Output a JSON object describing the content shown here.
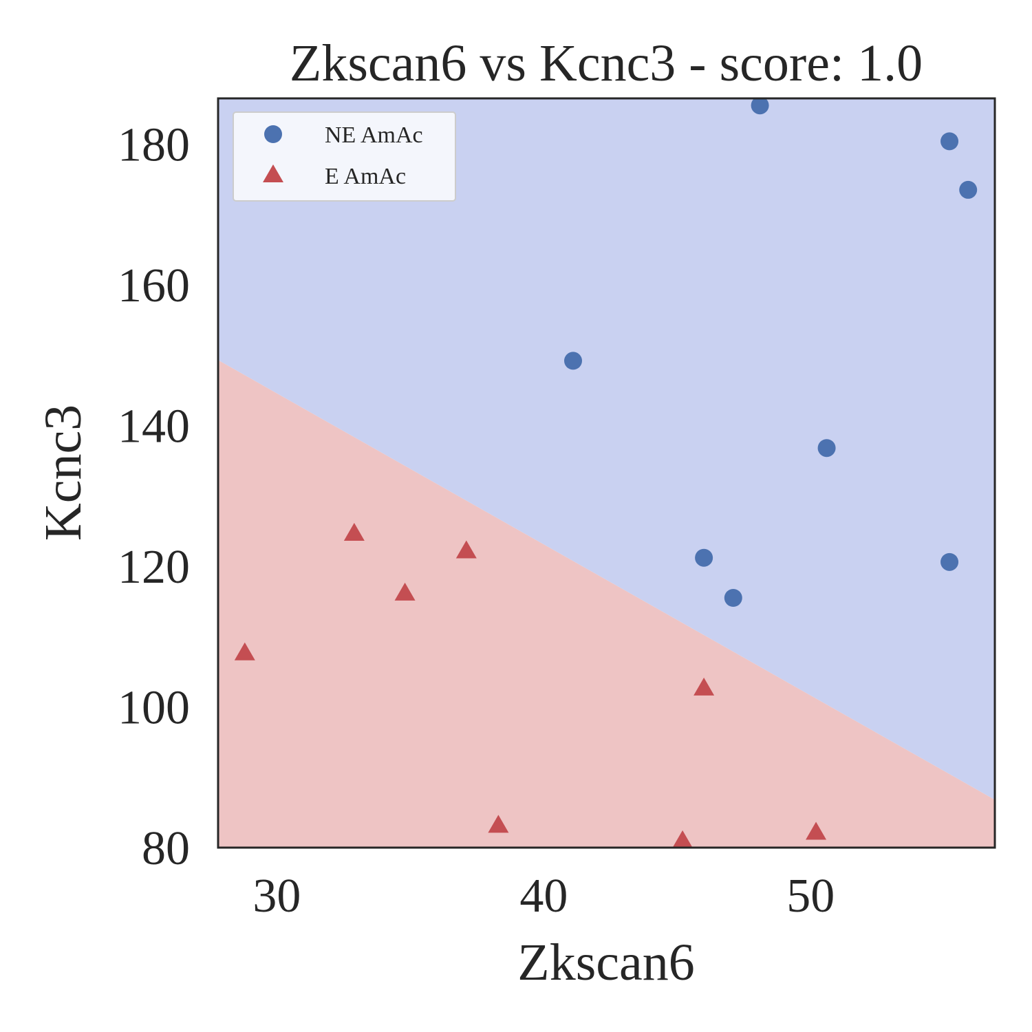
{
  "chart_data": {
    "type": "scatter",
    "title": "Zkscan6 vs Kcnc3 - score: 1.0",
    "xlabel": "Zkscan6",
    "ylabel": "Kcnc3",
    "xlim": [
      27.8,
      56.9
    ],
    "ylim": [
      80,
      186.5
    ],
    "xticks": [
      30,
      40,
      50
    ],
    "yticks": [
      80,
      100,
      120,
      140,
      160,
      180
    ],
    "grid": false,
    "legend_position": "top-left",
    "decision_boundary": {
      "points": [
        [
          27.8,
          149.3
        ],
        [
          56.9,
          86.8
        ]
      ],
      "upper_region": "NE AmAc",
      "lower_region": "E AmAc"
    },
    "series": [
      {
        "name": "NE AmAc",
        "marker": "circle",
        "color": "#4c72b0",
        "region_color": "#c9d1f1",
        "points": [
          [
            48.1,
            185.5
          ],
          [
            55.2,
            180.4
          ],
          [
            55.9,
            173.5
          ],
          [
            41.1,
            149.2
          ],
          [
            50.6,
            136.8
          ],
          [
            46.0,
            121.2
          ],
          [
            47.1,
            115.5
          ],
          [
            55.2,
            120.6
          ]
        ]
      },
      {
        "name": "E AmAc",
        "marker": "triangle",
        "color": "#c44e52",
        "region_color": "#eec4c4",
        "points": [
          [
            28.8,
            107.5
          ],
          [
            32.9,
            124.5
          ],
          [
            34.8,
            116.0
          ],
          [
            37.1,
            122.0
          ],
          [
            38.3,
            83.0
          ],
          [
            45.2,
            80.8
          ],
          [
            46.0,
            102.5
          ],
          [
            50.2,
            82.0
          ]
        ]
      }
    ]
  }
}
